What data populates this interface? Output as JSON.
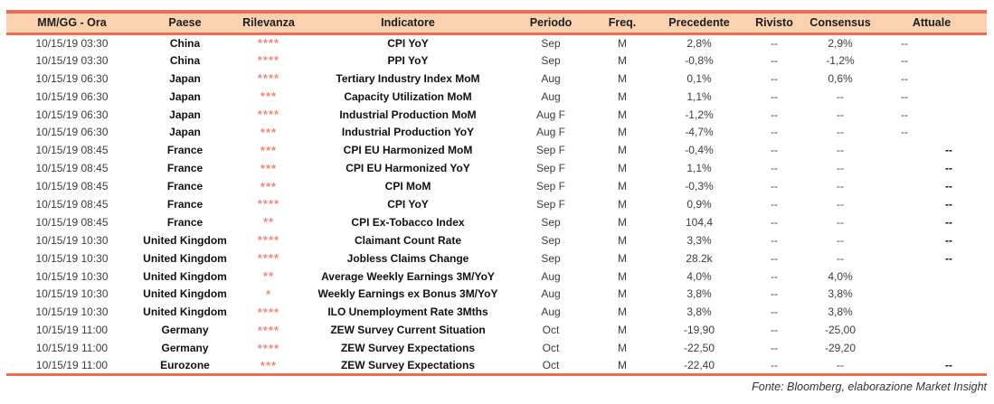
{
  "colors": {
    "accent_line": "#EF6B52",
    "header_bg": "#FAD2B0",
    "stars": "#F18778"
  },
  "table": {
    "columns": [
      "MM/GG - Ora",
      "Paese",
      "Rilevanza",
      "Indicatore",
      "Periodo",
      "Freq.",
      "Precedente",
      "Rivisto",
      "Consensus",
      "Attuale"
    ],
    "rows": [
      {
        "datetime": "10/15/19 03:30",
        "country": "China",
        "relevance": "****",
        "indicator": "CPI YoY",
        "period": "Sep",
        "freq": "M",
        "previous": "2,8%",
        "revised": "--",
        "consensus": "2,9%",
        "actual": "--",
        "actual_align": "left"
      },
      {
        "datetime": "10/15/19 03:30",
        "country": "China",
        "relevance": "****",
        "indicator": "PPI YoY",
        "period": "Sep",
        "freq": "M",
        "previous": "-0,8%",
        "revised": "--",
        "consensus": "-1,2%",
        "actual": "--",
        "actual_align": "left"
      },
      {
        "datetime": "10/15/19 06:30",
        "country": "Japan",
        "relevance": "****",
        "indicator": "Tertiary Industry Index MoM",
        "period": "Aug",
        "freq": "M",
        "previous": "0,1%",
        "revised": "--",
        "consensus": "0,6%",
        "actual": "--",
        "actual_align": "left"
      },
      {
        "datetime": "10/15/19 06:30",
        "country": "Japan",
        "relevance": "***",
        "indicator": "Capacity Utilization MoM",
        "period": "Aug",
        "freq": "M",
        "previous": "1,1%",
        "revised": "--",
        "consensus": "--",
        "actual": "--",
        "actual_align": "left"
      },
      {
        "datetime": "10/15/19 06:30",
        "country": "Japan",
        "relevance": "****",
        "indicator": "Industrial Production MoM",
        "period": "Aug F",
        "freq": "M",
        "previous": "-1,2%",
        "revised": "--",
        "consensus": "--",
        "actual": "--",
        "actual_align": "left"
      },
      {
        "datetime": "10/15/19 06:30",
        "country": "Japan",
        "relevance": "***",
        "indicator": "Industrial Production YoY",
        "period": "Aug F",
        "freq": "M",
        "previous": "-4,7%",
        "revised": "--",
        "consensus": "--",
        "actual": "--",
        "actual_align": "left"
      },
      {
        "datetime": "10/15/19 08:45",
        "country": "France",
        "relevance": "***",
        "indicator": "CPI EU Harmonized MoM",
        "period": "Sep F",
        "freq": "M",
        "previous": "-0,4%",
        "revised": "--",
        "consensus": "--",
        "actual": "--",
        "actual_align": "right"
      },
      {
        "datetime": "10/15/19 08:45",
        "country": "France",
        "relevance": "***",
        "indicator": "CPI EU Harmonized YoY",
        "period": "Sep F",
        "freq": "M",
        "previous": "1,1%",
        "revised": "--",
        "consensus": "--",
        "actual": "--",
        "actual_align": "right"
      },
      {
        "datetime": "10/15/19 08:45",
        "country": "France",
        "relevance": "***",
        "indicator": "CPI MoM",
        "period": "Sep F",
        "freq": "M",
        "previous": "-0,3%",
        "revised": "--",
        "consensus": "--",
        "actual": "--",
        "actual_align": "right"
      },
      {
        "datetime": "10/15/19 08:45",
        "country": "France",
        "relevance": "****",
        "indicator": "CPI YoY",
        "period": "Sep F",
        "freq": "M",
        "previous": "0,9%",
        "revised": "--",
        "consensus": "--",
        "actual": "--",
        "actual_align": "right"
      },
      {
        "datetime": "10/15/19 08:45",
        "country": "France",
        "relevance": "**",
        "indicator": "CPI Ex-Tobacco Index",
        "period": "Sep",
        "freq": "M",
        "previous": "104,4",
        "revised": "--",
        "consensus": "--",
        "actual": "--",
        "actual_align": "right"
      },
      {
        "datetime": "10/15/19 10:30",
        "country": "United Kingdom",
        "relevance": "****",
        "indicator": "Claimant Count Rate",
        "period": "Sep",
        "freq": "M",
        "previous": "3,3%",
        "revised": "--",
        "consensus": "--",
        "actual": "--",
        "actual_align": "right"
      },
      {
        "datetime": "10/15/19 10:30",
        "country": "United Kingdom",
        "relevance": "****",
        "indicator": "Jobless Claims Change",
        "period": "Sep",
        "freq": "M",
        "previous": "28.2k",
        "revised": "--",
        "consensus": "--",
        "actual": "--",
        "actual_align": "right"
      },
      {
        "datetime": "10/15/19 10:30",
        "country": "United Kingdom",
        "relevance": "**",
        "indicator": "Average Weekly Earnings 3M/YoY",
        "period": "Aug",
        "freq": "M",
        "previous": "4,0%",
        "revised": "--",
        "consensus": "4,0%",
        "actual": "",
        "actual_align": ""
      },
      {
        "datetime": "10/15/19 10:30",
        "country": "United Kingdom",
        "relevance": "*",
        "indicator": "Weekly Earnings ex Bonus 3M/YoY",
        "period": "Aug",
        "freq": "M",
        "previous": "3,8%",
        "revised": "--",
        "consensus": "3,8%",
        "actual": "",
        "actual_align": ""
      },
      {
        "datetime": "10/15/19 10:30",
        "country": "United Kingdom",
        "relevance": "****",
        "indicator": "ILO Unemployment Rate 3Mths",
        "period": "Aug",
        "freq": "M",
        "previous": "3,8%",
        "revised": "--",
        "consensus": "3,8%",
        "actual": "",
        "actual_align": ""
      },
      {
        "datetime": "10/15/19 11:00",
        "country": "Germany",
        "relevance": "****",
        "indicator": "ZEW Survey Current Situation",
        "period": "Oct",
        "freq": "M",
        "previous": "-19,90",
        "revised": "--",
        "consensus": "-25,00",
        "actual": "",
        "actual_align": ""
      },
      {
        "datetime": "10/15/19 11:00",
        "country": "Germany",
        "relevance": "****",
        "indicator": "ZEW Survey Expectations",
        "period": "Oct",
        "freq": "M",
        "previous": "-22,50",
        "revised": "--",
        "consensus": "-29,20",
        "actual": "",
        "actual_align": ""
      },
      {
        "datetime": "10/15/19 11:00",
        "country": "Eurozone",
        "relevance": "***",
        "indicator": "ZEW Survey Expectations",
        "period": "Oct",
        "freq": "M",
        "previous": "-22,40",
        "revised": "--",
        "consensus": "--",
        "actual": "--",
        "actual_align": "right"
      }
    ]
  },
  "footer": {
    "source": "Fonte: Bloomberg, elaborazione Market Insight"
  }
}
